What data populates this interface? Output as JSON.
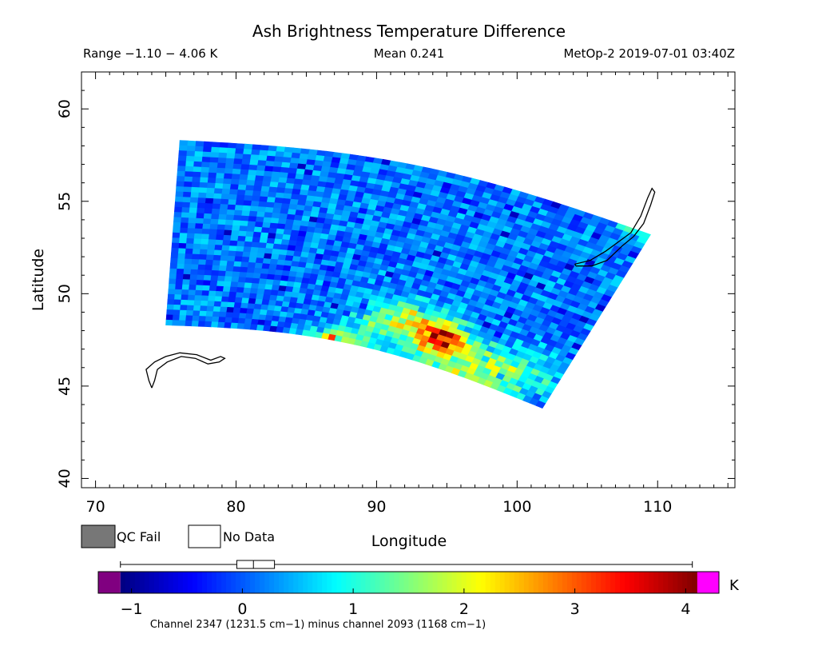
{
  "chart_data": {
    "type": "heatmap",
    "title": "Ash Brightness Temperature Difference",
    "header": {
      "range": "Range −1.10 − 4.06 K",
      "mean": "Mean 0.241",
      "source": "MetOp-2 2019-07-01 03:40Z"
    },
    "xlabel": "Longitude",
    "ylabel": "Latitude",
    "xlim": [
      69,
      115.5
    ],
    "ylim": [
      39.5,
      62
    ],
    "xticks": [
      70,
      80,
      90,
      100,
      110
    ],
    "yticks": [
      40,
      45,
      50,
      55,
      60
    ],
    "grid": false,
    "swath_corners": {
      "top_left": [
        76,
        58.3
      ],
      "top_right": [
        109.5,
        53.2
      ],
      "bottom_right": [
        101.8,
        43.8
      ],
      "bottom_left": [
        75,
        48.3
      ]
    },
    "background_value_range": [
      -0.3,
      0.7
    ],
    "anomaly_regions": [
      {
        "center": [
          94.5,
          47.7
        ],
        "sigma": [
          1.2,
          0.6
        ],
        "peak": 3.6
      },
      {
        "center": [
          91.5,
          48.6
        ],
        "sigma": [
          1.8,
          0.7
        ],
        "peak": 2.0
      },
      {
        "center": [
          95.5,
          46.4
        ],
        "sigma": [
          3.2,
          0.8
        ],
        "peak": 1.4
      },
      {
        "center": [
          99,
          45.4
        ],
        "sigma": [
          2.8,
          0.6
        ],
        "peak": 1.3
      },
      {
        "center": [
          87,
          47.6
        ],
        "sigma": [
          1.4,
          0.35
        ],
        "peak": 2.3
      },
      {
        "center": [
          108.5,
          53.5
        ],
        "sigma": [
          0.8,
          0.4
        ],
        "peak": 1.1
      }
    ],
    "coastlines": [
      {
        "name": "Lake Baikal",
        "points": [
          [
            104.1,
            51.6
          ],
          [
            105.2,
            51.8
          ],
          [
            106.3,
            52.3
          ],
          [
            107.2,
            52.8
          ],
          [
            108.1,
            53.3
          ],
          [
            108.8,
            54.2
          ],
          [
            109.3,
            55.2
          ],
          [
            109.6,
            55.7
          ],
          [
            109.8,
            55.5
          ],
          [
            109.5,
            54.8
          ],
          [
            109.0,
            53.8
          ],
          [
            108.3,
            53.1
          ],
          [
            107.5,
            52.6
          ],
          [
            106.4,
            51.8
          ],
          [
            105.3,
            51.5
          ],
          [
            104.2,
            51.5
          ],
          [
            104.1,
            51.6
          ]
        ]
      },
      {
        "name": "Lake Balkhash",
        "points": [
          [
            74.0,
            44.9
          ],
          [
            73.8,
            45.3
          ],
          [
            73.6,
            45.9
          ],
          [
            74.2,
            46.3
          ],
          [
            75.0,
            46.6
          ],
          [
            76.0,
            46.8
          ],
          [
            77.2,
            46.7
          ],
          [
            78.2,
            46.4
          ],
          [
            78.9,
            46.6
          ],
          [
            79.2,
            46.5
          ],
          [
            78.8,
            46.3
          ],
          [
            78.0,
            46.2
          ],
          [
            77.1,
            46.5
          ],
          [
            76.1,
            46.6
          ],
          [
            75.1,
            46.3
          ],
          [
            74.4,
            45.9
          ],
          [
            74.2,
            45.3
          ],
          [
            74.0,
            44.9
          ]
        ]
      }
    ],
    "legend": {
      "qc_fail": "QC Fail",
      "no_data": "No Data",
      "qc_fail_color": "#777777",
      "no_data_color": "#ffffff"
    },
    "colorbar": {
      "min": -1.3,
      "max": 4.3,
      "ticks": [
        -1,
        0,
        1,
        2,
        3,
        4
      ],
      "tick_labels": [
        "−1",
        "0",
        "1",
        "2",
        "3",
        "4"
      ],
      "unit": "K",
      "underflow_color": "#800080",
      "overflow_color": "#ff00ff",
      "caption": "Channel 2347 (1231.5 cm−1) minus channel 2093 (1168 cm−1)",
      "stats_whisker": [
        -1.1,
        4.06
      ],
      "stats_box": [
        -0.05,
        0.29
      ],
      "stats_median": 0.1
    },
    "colormap": "jet"
  }
}
